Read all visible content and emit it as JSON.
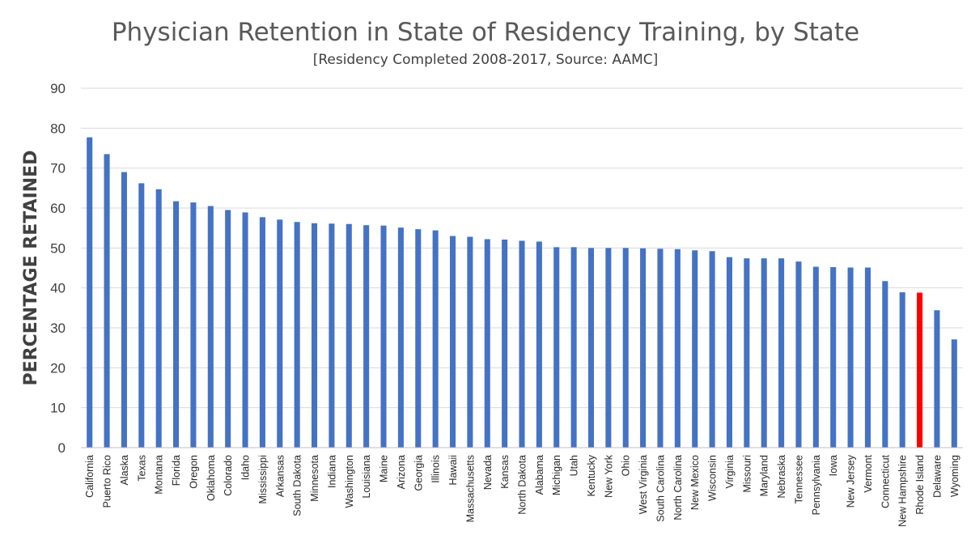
{
  "chart_data": {
    "type": "bar",
    "title": "Physician Retention in State of Residency Training, by State",
    "subtitle": "[Residency Completed 2008-2017, Source: AAMC]",
    "xlabel": "",
    "ylabel": "PERCENTAGE RETAINED",
    "ylim": [
      0,
      90
    ],
    "yticks": [
      0,
      10,
      20,
      30,
      40,
      50,
      60,
      70,
      80,
      90
    ],
    "grid": true,
    "bar_color": "#4472c4",
    "highlight_color": "#ff0000",
    "highlight_category": "Rhode Island",
    "categories": [
      "California",
      "Puerto Rico",
      "Alaska",
      "Texas",
      "Montana",
      "Florida",
      "Oregon",
      "Oklahoma",
      "Colorado",
      "Idaho",
      "Mississippi",
      "Arkansas",
      "South Dakota",
      "Minnesota",
      "Indiana",
      "Washington",
      "Louisiana",
      "Maine",
      "Arizona",
      "Georgia",
      "Illinois",
      "Hawaii",
      "Massachusetts",
      "Nevada",
      "Kansas",
      "North Dakota",
      "Alabama",
      "Michigan",
      "Utah",
      "Kentucky",
      "New York",
      "Ohio",
      "West Virginia",
      "South Carolina",
      "North Carolina",
      "New Mexico",
      "Wisconsin",
      "Virginia",
      "Missouri",
      "Maryland",
      "Nebraska",
      "Tennessee",
      "Pennsylvania",
      "Iowa",
      "New Jersey",
      "Vermont",
      "Connecticut",
      "New Hampshire",
      "Rhode Island",
      "Delaware",
      "Wyoming"
    ],
    "values": [
      77.7,
      73.5,
      69.0,
      66.2,
      64.7,
      61.7,
      61.4,
      60.5,
      59.5,
      58.9,
      57.7,
      57.1,
      56.5,
      56.2,
      56.1,
      56.0,
      55.7,
      55.6,
      55.1,
      54.7,
      54.4,
      53.0,
      52.8,
      52.2,
      52.1,
      51.8,
      51.6,
      50.2,
      50.2,
      50.0,
      50.0,
      50.0,
      49.9,
      49.8,
      49.7,
      49.4,
      49.2,
      47.7,
      47.4,
      47.4,
      47.4,
      46.6,
      45.3,
      45.2,
      45.1,
      45.1,
      41.7,
      38.9,
      38.8,
      34.4,
      27.1
    ]
  }
}
